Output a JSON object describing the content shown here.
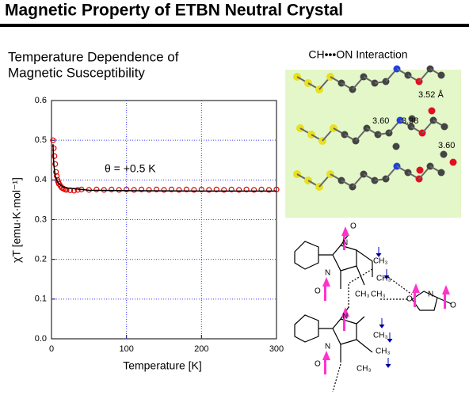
{
  "header": {
    "title": "Magnetic Property of ETBN Neutral Crystal"
  },
  "chart_data": {
    "type": "scatter",
    "title": [
      "Temperature Dependence of",
      "Magnetic Susceptibility"
    ],
    "xlabel": "Temperature [K]",
    "ylabel": "χT [emu·K·mol⁻¹]",
    "annotation": "θ = +0.5 K",
    "xlim": [
      0,
      300
    ],
    "xticks": [
      0,
      100,
      200,
      300
    ],
    "ylim": [
      0,
      0.6
    ],
    "yticks": [
      {
        "value": 0,
        "label": "0.0"
      },
      0.1,
      0.2,
      0.3,
      0.4,
      0.5,
      0.6
    ],
    "grid": true,
    "grid_color": "#3a3aff",
    "series": [
      {
        "marker": "circle",
        "color": "#e00000",
        "x": [
          2,
          3,
          4,
          5,
          6,
          7,
          8,
          9,
          10,
          12,
          14,
          16,
          18,
          20,
          25,
          30,
          35,
          40,
          50,
          60,
          70,
          80,
          90,
          100,
          110,
          120,
          130,
          140,
          150,
          160,
          170,
          180,
          190,
          200,
          210,
          220,
          230,
          240,
          250,
          260,
          270,
          280,
          290,
          300
        ],
        "values": [
          0.5,
          0.48,
          0.46,
          0.44,
          0.42,
          0.41,
          0.4,
          0.395,
          0.39,
          0.385,
          0.38,
          0.378,
          0.376,
          0.375,
          0.374,
          0.373,
          0.375,
          0.376,
          0.375,
          0.376,
          0.375,
          0.376,
          0.375,
          0.376,
          0.375,
          0.376,
          0.375,
          0.376,
          0.375,
          0.376,
          0.375,
          0.376,
          0.375,
          0.376,
          0.375,
          0.376,
          0.375,
          0.376,
          0.375,
          0.376,
          0.375,
          0.376,
          0.375,
          0.376
        ]
      },
      {
        "marker": "line",
        "color": "#000000",
        "x": [
          2,
          3,
          5,
          8,
          10,
          15,
          20,
          50,
          100,
          200,
          300
        ],
        "values": [
          0.49,
          0.44,
          0.41,
          0.395,
          0.39,
          0.383,
          0.38,
          0.374,
          0.373,
          0.372,
          0.372
        ]
      }
    ]
  },
  "interaction": {
    "title": "CH•••ON Interaction",
    "distances": [
      "3.52 Å",
      "3.60",
      "3.38",
      "3.60"
    ]
  },
  "diagram": {
    "labels": [
      "O",
      "N",
      "N",
      "O",
      "CH₃",
      "CH₃",
      "CH₃",
      "CH₃",
      "O",
      "N",
      "O",
      "N",
      "N",
      "O",
      "CH₃",
      "CH₃",
      "CH₃"
    ]
  }
}
